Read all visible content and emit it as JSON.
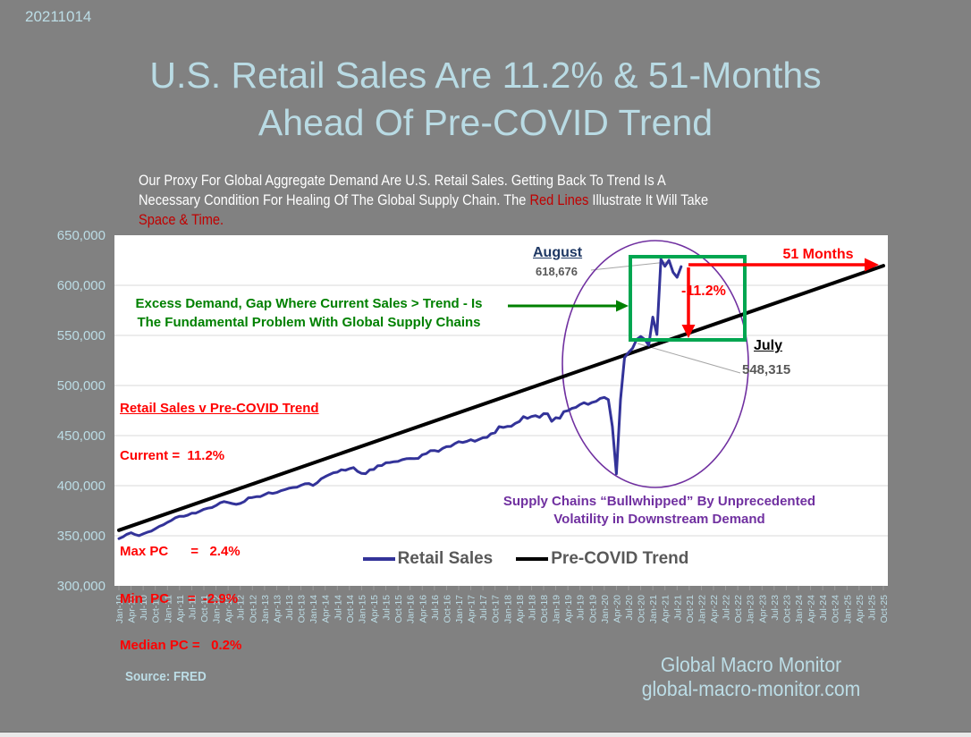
{
  "meta": {
    "date_stamp": "20211014"
  },
  "title": {
    "line1": "U.S. Retail Sales Are 11.2% & 51-Months",
    "line2": "Ahead Of Pre-COVID Trend"
  },
  "subtitle_segments": [
    {
      "text": "Our Proxy For Global Aggregate Demand Are U.S. Retail Sales.  Getting Back To Trend Is A\nNecessary Condition For Healing Of The Global Supply Chain.  The ",
      "color": "#FFFFFF"
    },
    {
      "text": "Red Lines",
      "color": "#C00000"
    },
    {
      "text": " Illustrate It Will Take\n",
      "color": "#FFFFFF"
    },
    {
      "text": "Space & Time.",
      "color": "#C00000"
    }
  ],
  "chart_data": {
    "type": "line",
    "title": "U.S. Retail Sales Are 11.2% & 51-Months Ahead Of Pre-COVID Trend",
    "xlabel": "",
    "ylabel": "",
    "ylim": [
      300000,
      650000
    ],
    "grid": "horizontal",
    "legend_position": "bottom-center-inside",
    "y_tick_labels": [
      "650,000",
      "600,000",
      "550,000",
      "500,000",
      "450,000",
      "400,000",
      "350,000",
      "300,000"
    ],
    "x_tick_labels": [
      "Jan-10",
      "Apr-10",
      "Jul-10",
      "Oct-10",
      "Jan-11",
      "Apr-11",
      "Jul-11",
      "Oct-11",
      "Jan-12",
      "Apr-12",
      "Jul-12",
      "Oct-12",
      "Jan-13",
      "Apr-13",
      "Jul-13",
      "Oct-13",
      "Jan-14",
      "Apr-14",
      "Jul-14",
      "Oct-14",
      "Jan-15",
      "Apr-15",
      "Jul-15",
      "Oct-15",
      "Jan-16",
      "Apr-16",
      "Jul-16",
      "Oct-16",
      "Jan-17",
      "Apr-17",
      "Jul-17",
      "Oct-17",
      "Jan-18",
      "Apr-18",
      "Jul-18",
      "Oct-18",
      "Jan-19",
      "Apr-19",
      "Jul-19",
      "Oct-19",
      "Jan-20",
      "Apr-20",
      "Jul-20",
      "Oct-20",
      "Jan-21",
      "Apr-21",
      "Jul-21",
      "Oct-21",
      "Jan-22",
      "Apr-22",
      "Jul-22",
      "Oct-22",
      "Jan-23",
      "Apr-23",
      "Jul-23",
      "Oct-23",
      "Jan-24",
      "Apr-24",
      "Jul-24",
      "Oct-24",
      "Jan-25",
      "Apr-25",
      "Jul-25",
      "Oct-25"
    ],
    "series": [
      {
        "name": "Retail Sales",
        "color": "#333399",
        "frequency": "monthly",
        "start": "Jan-10",
        "end": "Aug-21",
        "values": [
          347100,
          348800,
          351500,
          353000,
          351200,
          350100,
          351900,
          353500,
          354600,
          357000,
          359400,
          361000,
          363400,
          365400,
          368000,
          369500,
          369400,
          370500,
          372500,
          372600,
          374500,
          376400,
          377500,
          378100,
          380200,
          382900,
          384100,
          383200,
          382100,
          381300,
          382200,
          384100,
          387900,
          388200,
          389000,
          389100,
          391100,
          393000,
          392200,
          393100,
          394900,
          396100,
          397400,
          398100,
          398500,
          400400,
          401900,
          402100,
          400200,
          402900,
          406900,
          409000,
          411000,
          412900,
          413500,
          415900,
          415400,
          417000,
          418000,
          414300,
          412200,
          412000,
          415800,
          416200,
          419900,
          420100,
          422900,
          423100,
          423900,
          424200,
          425900,
          426900,
          427100,
          427000,
          427200,
          430900,
          432000,
          434900,
          435100,
          434200,
          437100,
          438900,
          439200,
          441900,
          443900,
          443100,
          444200,
          445900,
          444300,
          446100,
          447900,
          448200,
          451900,
          452900,
          458900,
          458100,
          459100,
          459300,
          462100,
          464000,
          468900,
          467100,
          469000,
          469900,
          468200,
          471900,
          471800,
          464200,
          467900,
          467200,
          473900,
          474800,
          477100,
          478200,
          481000,
          482900,
          481200,
          483100,
          484200,
          487100,
          488100,
          485900,
          459000,
          411800,
          485900,
          527900,
          532900,
          537100,
          545900,
          548900,
          546000,
          540100,
          568300,
          550900,
          626000,
          619000,
          625000,
          613000,
          608000,
          618676
        ]
      },
      {
        "name": "Pre-COVID Trend",
        "color": "#000000",
        "shape": "straight-line",
        "start": "Jan-10",
        "end": "Oct-25",
        "endpoint_values": [
          355529,
          619562
        ]
      }
    ],
    "annotations": {
      "august_label": "August",
      "august_value": "618,676",
      "months_label": "51 Months",
      "gap_label": "-11.2%",
      "july_label": "July",
      "july_value": "548,315",
      "excess_line1": "Excess Demand, Gap Where Current Sales > Trend - Is",
      "excess_line2": "The Fundamental Problem  With Global Supply Chains",
      "stats_title": "Retail Sales v Pre-COVID Trend",
      "stats_lines": [
        "Current =  11.2%",
        "Max PC      =   2.4%",
        "Min  PC     =  -2.9%",
        "Median PC =   0.2%"
      ],
      "bullwhip_line1": "Supply Chains “Bullwhipped” By Unprecedented",
      "bullwhip_line2": "Volatility in Downstream Demand",
      "covid_low_apr_2020": 411800
    }
  },
  "legend": {
    "items": [
      {
        "label": "Retail Sales",
        "color": "#333399"
      },
      {
        "label": "Pre-COVID Trend",
        "color": "#000000"
      }
    ]
  },
  "footer": {
    "source": "Source:  FRED",
    "brand_line1": "Global Macro Monitor",
    "brand_line2": "global-macro-monitor.com"
  },
  "colors": {
    "background": "#818181",
    "accent_text": "#BCDDE6",
    "retail_line": "#333399",
    "trend_line": "#000000",
    "highlight_red": "#FF0000",
    "subtitle_red": "#C00000",
    "box_green": "#00A650",
    "text_green": "#008000",
    "purple": "#7030A0",
    "value_gray": "#595959",
    "navy_label": "#1F3864",
    "gridline": "#D9D9D9",
    "callout_gray": "#A6A6A6"
  }
}
